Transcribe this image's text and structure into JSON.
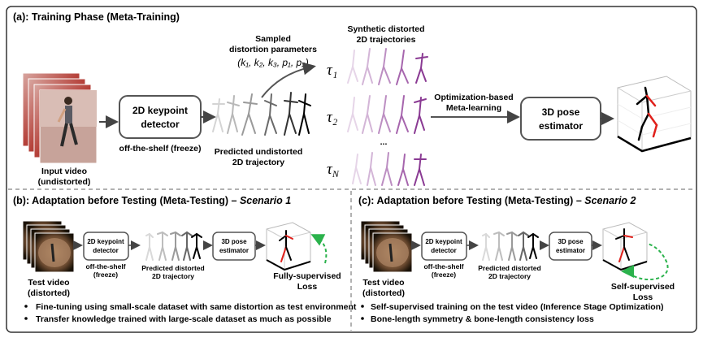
{
  "panel_a": {
    "title": "(a): Training Phase (Meta-Training)",
    "input_label_1": "Input video",
    "input_label_2": "(undistorted)",
    "detector_line1": "2D keypoint",
    "detector_line2": "detector",
    "detector_caption": "off-the-shelf (freeze)",
    "sampled_line1": "Sampled",
    "sampled_line2": "distortion parameters",
    "params": "(k₁, k₂, k₃, p₁, p₂)",
    "predicted_line1": "Predicted undistorted",
    "predicted_line2": "2D trajectory",
    "synthetic_line1": "Synthetic distorted",
    "synthetic_line2": "2D trajectories",
    "tau1": "τ₁",
    "tau2": "τ₂",
    "tauN": "τ",
    "tauN_sub": "N",
    "dots": "...",
    "opt_line1": "Optimization-based",
    "opt_line2": "Meta-learning",
    "estimator_line1": "3D pose",
    "estimator_line2": "estimator"
  },
  "panel_b": {
    "title_prefix": "(b): Adaptation before Testing (Meta-Testing) – ",
    "title_italic": "Scenario 1",
    "test_line1": "Test video",
    "test_line2": "(distorted)",
    "detector_line1": "2D keypoint",
    "detector_line2": "detector",
    "detector_cap1": "off-the-shelf",
    "detector_cap2": "(freeze)",
    "pred_line1": "Predicted distorted",
    "pred_line2": "2D trajectory",
    "estimator_line1": "3D pose",
    "estimator_line2": "estimator",
    "loss_line1": "Fully-supervised",
    "loss_line2": "Loss",
    "bullets": [
      "Fine-tuning using small-scale dataset with same distortion as test environment",
      "Transfer knowledge trained with large-scale dataset as much as possible"
    ]
  },
  "panel_c": {
    "title_prefix": "(c): Adaptation before Testing (Meta-Testing) – ",
    "title_italic": "Scenario 2",
    "test_line1": "Test video",
    "test_line2": "(distorted)",
    "detector_line1": "2D keypoint",
    "detector_line2": "detector",
    "detector_cap1": "off-the-shelf",
    "detector_cap2": "(freeze)",
    "pred_line1": "Predicted distorted",
    "pred_line2": "2D trajectory",
    "estimator_line1": "3D pose",
    "estimator_line2": "estimator",
    "loss_line1": "Self-supervised",
    "loss_line2": "Loss",
    "bullets": [
      "Self-supervised training on the test video (Inference Stage Optimization)",
      "Bone-length symmetry & bone-length consistency loss"
    ]
  },
  "colors": {
    "purple": "#9b3fa0",
    "purple_light": "#c9a6cf",
    "green": "#2bb24c",
    "red": "#e0201b",
    "video_red": "#b5413a"
  }
}
